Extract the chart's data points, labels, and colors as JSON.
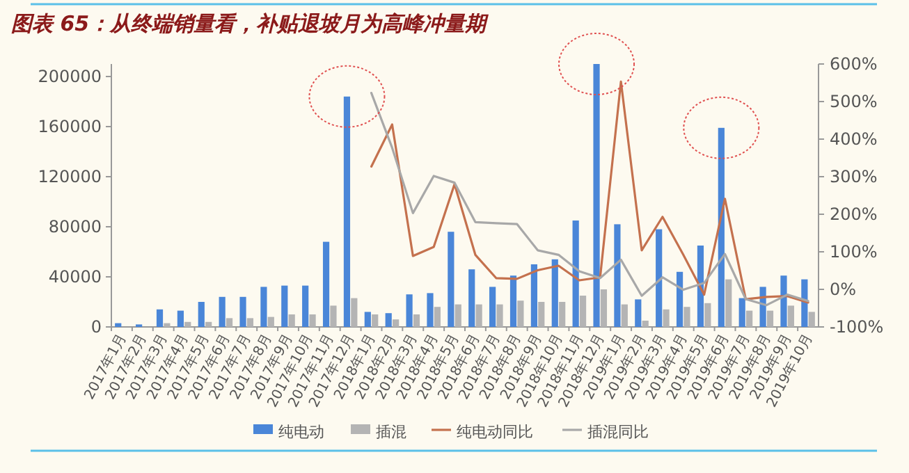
{
  "chart_data": {
    "type": "bar",
    "title": "图表 65：从终端销量看，补贴退坡月为高峰冲量期",
    "categories": [
      "2017年1月",
      "2017年2月",
      "2017年3月",
      "2017年4月",
      "2017年5月",
      "2017年6月",
      "2017年7月",
      "2017年8月",
      "2017年9月",
      "2017年10月",
      "2017年11月",
      "2017年12月",
      "2018年1月",
      "2018年2月",
      "2018年3月",
      "2018年4月",
      "2018年5月",
      "2018年6月",
      "2018年7月",
      "2018年8月",
      "2018年9月",
      "2018年10月",
      "2018年11月",
      "2018年12月",
      "2019年1月",
      "2019年2月",
      "2019年3月",
      "2019年4月",
      "2019年5月",
      "2019年6月",
      "2019年7月",
      "2019年8月",
      "2019年9月",
      "2019年10月"
    ],
    "series": [
      {
        "name": "纯电动",
        "color": "#4a86d8",
        "values": [
          3000,
          2000,
          14000,
          13000,
          20000,
          24000,
          24000,
          32000,
          33000,
          33000,
          68000,
          184000,
          12000,
          11000,
          26000,
          27000,
          76000,
          46000,
          32000,
          41000,
          50000,
          54000,
          85000,
          210000,
          82000,
          22000,
          78000,
          44000,
          65000,
          159000,
          23000,
          32000,
          41000,
          38000
        ]
      },
      {
        "name": "插混",
        "color": "#b4b4b4",
        "values": [
          null,
          null,
          3000,
          4000,
          4000,
          7000,
          7000,
          8000,
          10000,
          10000,
          17000,
          23000,
          10000,
          6000,
          10000,
          16000,
          18000,
          18000,
          18000,
          21000,
          20000,
          20000,
          25000,
          30000,
          18000,
          5000,
          14000,
          16000,
          19000,
          38000,
          13000,
          13000,
          17000,
          12000
        ]
      },
      {
        "name": "纯电动同比",
        "type": "line",
        "axis": "y2",
        "color": "#c4714e",
        "values": [
          null,
          null,
          null,
          null,
          null,
          null,
          null,
          null,
          null,
          null,
          null,
          null,
          327,
          439,
          89,
          113,
          280,
          92,
          30,
          28,
          51,
          63,
          24,
          32,
          553,
          104,
          193,
          92,
          -14,
          241,
          -26,
          -20,
          -18,
          -35
        ]
      },
      {
        "name": "插混同比",
        "type": "line",
        "axis": "y2",
        "color": "#a8a8a8",
        "values": [
          null,
          null,
          null,
          null,
          null,
          null,
          null,
          null,
          null,
          null,
          null,
          null,
          523,
          377,
          203,
          302,
          284,
          179,
          176,
          174,
          104,
          92,
          48,
          30,
          79,
          -17,
          32,
          -1,
          17,
          94,
          -26,
          -42,
          -14,
          -31
        ]
      }
    ],
    "ylim": [
      0,
      210000
    ],
    "yticks": [
      0,
      40000,
      80000,
      120000,
      160000,
      200000
    ],
    "y2lim": [
      -100,
      600
    ],
    "y2ticks": [
      {
        "value": -100,
        "label": "-100%"
      },
      {
        "value": 0,
        "label": "0%"
      },
      {
        "value": 100,
        "label": "100%"
      },
      {
        "value": 200,
        "label": "200%"
      },
      {
        "value": 300,
        "label": "300%"
      },
      {
        "value": 400,
        "label": "400%"
      },
      {
        "value": 500,
        "label": "500%"
      },
      {
        "value": 600,
        "label": "600%"
      }
    ],
    "legend": "bottom"
  }
}
